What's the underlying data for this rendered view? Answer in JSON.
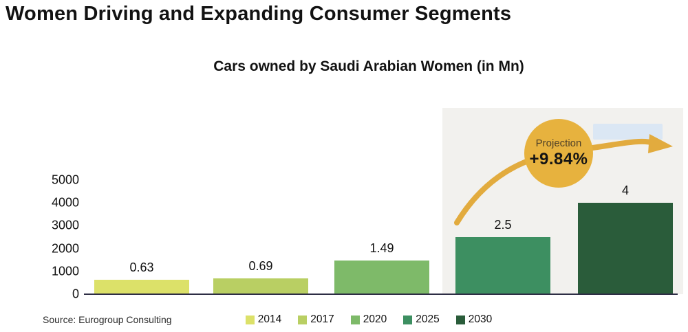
{
  "page": {
    "title": "Women Driving and Expanding Consumer Segments"
  },
  "chart": {
    "source": "Source: Eurogroup Consulting",
    "projection": {
      "label": "Projection",
      "value": "+9.84%"
    }
  },
  "chart_data": {
    "type": "bar",
    "title": "Cars owned by Saudi Arabian Women (in Mn)",
    "categories": [
      "2014",
      "2017",
      "2020",
      "2025",
      "2030"
    ],
    "values": [
      0.63,
      0.69,
      1.49,
      2.5,
      4
    ],
    "bar_labels": [
      "0.63",
      "0.69",
      "1.49",
      "2.5",
      "4"
    ],
    "bar_colors": [
      "#dce169",
      "#b9cf63",
      "#7eba69",
      "#3d8f61",
      "#2a5c3a"
    ],
    "y_ticks": [
      "0",
      "1000",
      "2000",
      "3000",
      "4000",
      "5000"
    ],
    "ylim": [
      0,
      5000
    ],
    "axis_unit_multiplier": 1000,
    "xlabel": "",
    "ylabel": "",
    "grid": "off",
    "legend_position": "bottom",
    "annotations": [
      {
        "text": "Projection +9.84%",
        "style": "gold-circle-with-arrow",
        "applies_to": [
          "2025",
          "2030"
        ]
      }
    ],
    "projection_region_categories": [
      "2025",
      "2030"
    ],
    "accent_colors": {
      "projection_circle": "#e7b23e",
      "projection_arrow": "#e2ab3e",
      "projection_region_bg": "#f2f1ee",
      "highlight_rect": "#dbe7f4",
      "axis_line": "#2e2e45"
    }
  }
}
